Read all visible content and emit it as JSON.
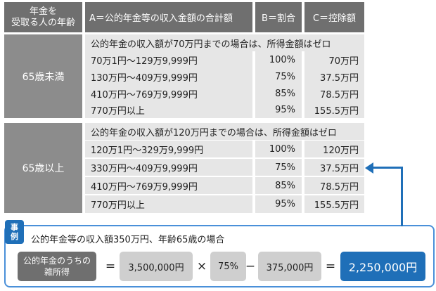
{
  "headers": {
    "col0_line1": "年金を",
    "col0_line2": "受取る人の年齢",
    "col1": "A＝公的年金等の収入金額の合計額",
    "col2": "B＝割合",
    "col3": "C＝控除額"
  },
  "groups": [
    {
      "label": "65歳未満",
      "note": "公的年金の収入額が70万円までの場合は、所得金額はゼロ",
      "rows": [
        {
          "a": "70万1円〜129万9,999円",
          "b": "100%",
          "c": "70万円"
        },
        {
          "a": "130万円〜409万9,999円",
          "b": "75%",
          "c": "37.5万円"
        },
        {
          "a": "410万円〜769万9,999円",
          "b": "85%",
          "c": "78.5万円"
        },
        {
          "a": "770万円以上",
          "b": "95%",
          "c": "155.5万円"
        }
      ]
    },
    {
      "label": "65歳以上",
      "note": "公的年金の収入額が120万円までの場合は、所得金額はゼロ",
      "rows": [
        {
          "a": "120万1円〜329万9,999円",
          "b": "100%",
          "c": "120万円"
        },
        {
          "a": "330万円〜409万9,999円",
          "b": "75%",
          "c": "37.5万円"
        },
        {
          "a": "410万円〜769万9,999円",
          "b": "85%",
          "c": "78.5万円"
        },
        {
          "a": "770万円以上",
          "b": "95%",
          "c": "155.5万円"
        }
      ]
    }
  ],
  "example": {
    "tag_line1": "事",
    "tag_line2": "例",
    "title": "公的年金等の収入額350万円、年齢65歳の場合",
    "label_line1": "公的年金のうちの",
    "label_line2": "雑所得",
    "eq1": "=",
    "income": "3,500,000円",
    "times": "×",
    "rate": "75%",
    "minus": "−",
    "deduction": "375,000円",
    "eq2": "=",
    "result": "2,250,000円"
  },
  "colors": {
    "header": "#6f6f6f",
    "group": "#8c8c8c",
    "cell": "#e6e6e6",
    "accent": "#1f6fb8"
  }
}
